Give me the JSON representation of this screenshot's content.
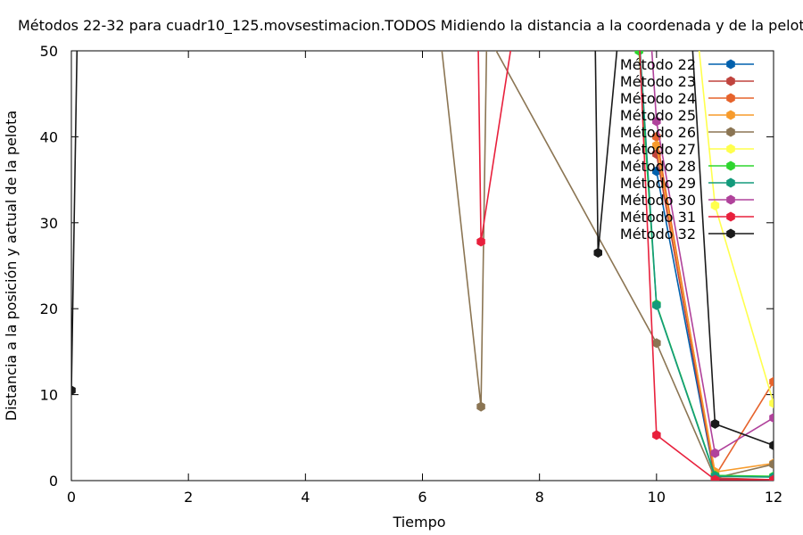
{
  "chart_data": {
    "type": "line",
    "title": "Métodos 22-32 para cuadr10_125.movsestimacion.TODOS Midiendo la distancia a la coordenada y de la pelota",
    "xlabel": "Tiempo",
    "ylabel": "Distancia a la posición y actual de la pelota",
    "xlim": [
      0,
      12
    ],
    "ylim": [
      0,
      50
    ],
    "xticks": [
      0,
      2,
      4,
      6,
      8,
      10,
      12
    ],
    "yticks": [
      0,
      10,
      20,
      30,
      40,
      50
    ],
    "grid": false,
    "legend_position": "top-right",
    "series": [
      {
        "name": "Método 22",
        "color": "#0060ad",
        "points": [
          [
            10,
            36
          ],
          [
            11,
            0.2
          ],
          [
            12,
            0.1
          ]
        ]
      },
      {
        "name": "Método 23",
        "color": "#c0443e",
        "points": [
          [
            10,
            38
          ],
          [
            11,
            0.3
          ],
          [
            12,
            0.1
          ]
        ]
      },
      {
        "name": "Método 24",
        "color": "#e6632c",
        "points": [
          [
            10,
            40
          ],
          [
            11,
            0.5
          ],
          [
            12,
            11.5
          ]
        ]
      },
      {
        "name": "Método 25",
        "color": "#f79b2c",
        "points": [
          [
            10,
            39
          ],
          [
            11,
            1.0
          ],
          [
            12,
            2.0
          ]
        ]
      },
      {
        "name": "Método 26",
        "color": "#8b7553",
        "points": [
          [
            6.3,
            52
          ],
          [
            7,
            8.6
          ],
          [
            7.1,
            52
          ],
          [
            10,
            16.0
          ],
          [
            11,
            0.3
          ],
          [
            12,
            1.9
          ]
        ]
      },
      {
        "name": "Método 27",
        "color": "#ffff4d",
        "points": [
          [
            10.7,
            52
          ],
          [
            11,
            32
          ],
          [
            12,
            9.0
          ]
        ]
      },
      {
        "name": "Método 28",
        "color": "#2ed52e",
        "points": [
          [
            9.7,
            50
          ],
          [
            10,
            20.5
          ],
          [
            11,
            0.6
          ],
          [
            12,
            0.5
          ]
        ]
      },
      {
        "name": "Método 29",
        "color": "#139a7b",
        "points": [
          [
            9.7,
            52
          ],
          [
            10,
            20.4
          ],
          [
            11,
            0.5
          ],
          [
            12,
            0.4
          ]
        ]
      },
      {
        "name": "Método 30",
        "color": "#b0429b",
        "points": [
          [
            9.9,
            52
          ],
          [
            10,
            41.8
          ],
          [
            11,
            3.2
          ],
          [
            12,
            7.3
          ]
        ]
      },
      {
        "name": "Método 31",
        "color": "#e8203c",
        "points": [
          [
            6.95,
            52
          ],
          [
            7,
            27.8
          ],
          [
            7.55,
            52
          ],
          [
            9.7,
            52
          ],
          [
            10,
            5.3
          ],
          [
            11,
            0.1
          ],
          [
            12,
            0.1
          ]
        ]
      },
      {
        "name": "Método 32",
        "color": "#1a1a1a",
        "points": [
          [
            0,
            10.5
          ],
          [
            0.1,
            52
          ],
          [
            8.95,
            52
          ],
          [
            9,
            26.5
          ],
          [
            9.35,
            52
          ],
          [
            10.6,
            52
          ],
          [
            11,
            6.6
          ],
          [
            12,
            4.1
          ]
        ]
      }
    ]
  }
}
